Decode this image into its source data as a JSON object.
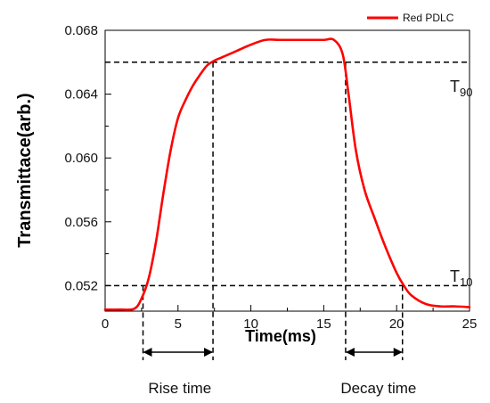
{
  "chart_data": {
    "type": "line",
    "title": "",
    "xlabel": "Time(ms)",
    "ylabel": "Transmittace(arb.)",
    "xlim": [
      0,
      25
    ],
    "ylim": [
      0.0504,
      0.068
    ],
    "xticks": [
      0,
      5,
      10,
      15,
      20,
      25
    ],
    "xtick_labels": [
      "0",
      "5",
      "10",
      "15",
      "20",
      "25"
    ],
    "yticks": [
      0.052,
      0.056,
      0.06,
      0.064,
      0.068
    ],
    "ytick_labels": [
      "0.052",
      "0.056",
      "0.060",
      "0.064",
      "0.068"
    ],
    "grid": false,
    "legend": {
      "position": "top-right",
      "entries": [
        "Red PDLC"
      ]
    },
    "series": [
      {
        "name": "Red PDLC",
        "color": "#ff0000",
        "x": [
          0,
          1,
          2,
          2.5,
          3,
          3.5,
          4,
          4.5,
          5,
          5.5,
          6,
          6.5,
          7,
          7.5,
          8,
          9,
          10,
          11,
          12,
          13,
          14,
          15,
          15.7,
          16.3,
          16.7,
          17.2,
          17.8,
          18.5,
          19.2,
          20,
          20.5,
          21,
          22,
          23,
          24,
          25
        ],
        "y": [
          0.0505,
          0.0505,
          0.05055,
          0.0512,
          0.0525,
          0.0548,
          0.0578,
          0.0605,
          0.0625,
          0.0636,
          0.0645,
          0.0652,
          0.0658,
          0.0661,
          0.0663,
          0.0667,
          0.0671,
          0.0674,
          0.0674,
          0.0674,
          0.0674,
          0.0674,
          0.0674,
          0.0665,
          0.064,
          0.0605,
          0.058,
          0.0562,
          0.0545,
          0.0528,
          0.052,
          0.0514,
          0.05085,
          0.0507,
          0.0507,
          0.05065
        ]
      }
    ],
    "annotations": {
      "t90": {
        "label": "T",
        "sub": "90",
        "value": 0.066
      },
      "t10": {
        "label": "T",
        "sub": "10",
        "value": 0.052
      },
      "rise": {
        "label": "Rise time",
        "start": 2.6,
        "end": 7.4
      },
      "decay": {
        "label": "Decay time",
        "start": 16.5,
        "end": 20.4
      }
    }
  }
}
